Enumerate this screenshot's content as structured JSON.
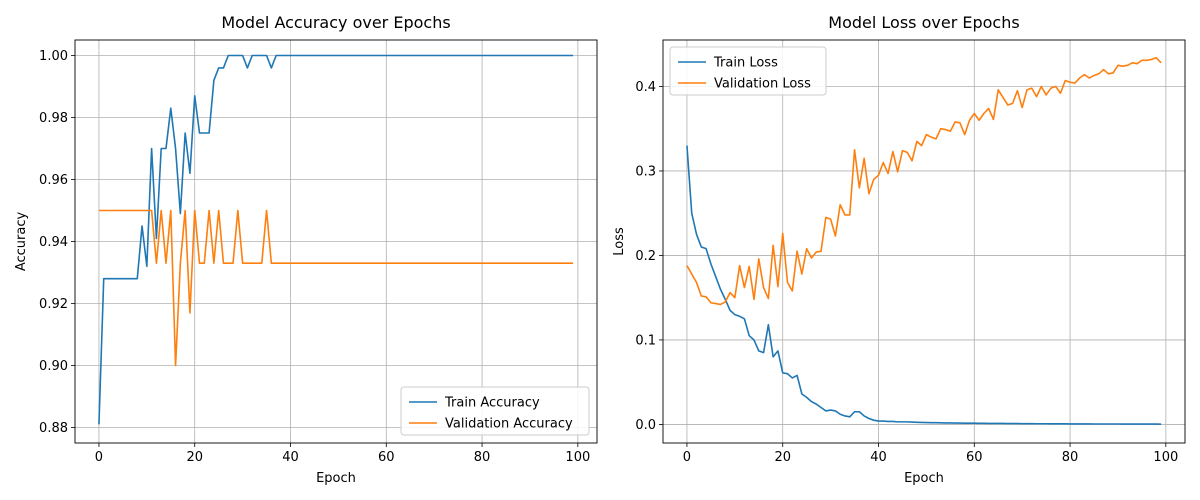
{
  "chart_data": [
    {
      "type": "line",
      "title": "Model Accuracy over Epochs",
      "xlabel": "Epoch",
      "ylabel": "Accuracy",
      "xlim": [
        -5,
        104
      ],
      "ylim": [
        0.875,
        1.005
      ],
      "xticks": [
        0,
        20,
        40,
        60,
        80,
        100
      ],
      "yticks": [
        0.88,
        0.9,
        0.92,
        0.94,
        0.96,
        0.98,
        1.0
      ],
      "ytick_format": 2,
      "grid": true,
      "legend_position": "bottom-right",
      "series": [
        {
          "name": "Train Accuracy",
          "color": "#1f77b4",
          "values": [
            0.881,
            0.928,
            0.928,
            0.928,
            0.928,
            0.928,
            0.928,
            0.928,
            0.928,
            0.945,
            0.932,
            0.97,
            0.941,
            0.97,
            0.97,
            0.983,
            0.97,
            0.949,
            0.975,
            0.962,
            0.987,
            0.975,
            0.975,
            0.975,
            0.992,
            0.996,
            0.996,
            1.0,
            1.0,
            1.0,
            1.0,
            0.996,
            1.0,
            1.0,
            1.0,
            1.0,
            0.996,
            1.0,
            1.0,
            1.0,
            1.0,
            1.0,
            1.0,
            1.0,
            1.0,
            1.0,
            1.0,
            1.0,
            1.0,
            1.0,
            1.0,
            1.0,
            1.0,
            1.0,
            1.0,
            1.0,
            1.0,
            1.0,
            1.0,
            1.0,
            1.0,
            1.0,
            1.0,
            1.0,
            1.0,
            1.0,
            1.0,
            1.0,
            1.0,
            1.0,
            1.0,
            1.0,
            1.0,
            1.0,
            1.0,
            1.0,
            1.0,
            1.0,
            1.0,
            1.0,
            1.0,
            1.0,
            1.0,
            1.0,
            1.0,
            1.0,
            1.0,
            1.0,
            1.0,
            1.0,
            1.0,
            1.0,
            1.0,
            1.0,
            1.0,
            1.0,
            1.0,
            1.0,
            1.0,
            1.0
          ]
        },
        {
          "name": "Validation Accuracy",
          "color": "#ff7f0e",
          "values": [
            0.95,
            0.95,
            0.95,
            0.95,
            0.95,
            0.95,
            0.95,
            0.95,
            0.95,
            0.95,
            0.95,
            0.95,
            0.933,
            0.95,
            0.933,
            0.95,
            0.9,
            0.933,
            0.95,
            0.917,
            0.95,
            0.933,
            0.933,
            0.95,
            0.933,
            0.95,
            0.933,
            0.933,
            0.933,
            0.95,
            0.933,
            0.933,
            0.933,
            0.933,
            0.933,
            0.95,
            0.933,
            0.933,
            0.933,
            0.933,
            0.933,
            0.933,
            0.933,
            0.933,
            0.933,
            0.933,
            0.933,
            0.933,
            0.933,
            0.933,
            0.933,
            0.933,
            0.933,
            0.933,
            0.933,
            0.933,
            0.933,
            0.933,
            0.933,
            0.933,
            0.933,
            0.933,
            0.933,
            0.933,
            0.933,
            0.933,
            0.933,
            0.933,
            0.933,
            0.933,
            0.933,
            0.933,
            0.933,
            0.933,
            0.933,
            0.933,
            0.933,
            0.933,
            0.933,
            0.933,
            0.933,
            0.933,
            0.933,
            0.933,
            0.933,
            0.933,
            0.933,
            0.933,
            0.933,
            0.933,
            0.933,
            0.933,
            0.933,
            0.933,
            0.933,
            0.933,
            0.933,
            0.933,
            0.933,
            0.933
          ]
        }
      ]
    },
    {
      "type": "line",
      "title": "Model Loss over Epochs",
      "xlabel": "Epoch",
      "ylabel": "Loss",
      "xlim": [
        -5,
        104
      ],
      "ylim": [
        -0.022,
        0.455
      ],
      "xticks": [
        0,
        20,
        40,
        60,
        80,
        100
      ],
      "yticks": [
        0.0,
        0.1,
        0.2,
        0.3,
        0.4
      ],
      "ytick_format": 1,
      "grid": true,
      "legend_position": "top-left",
      "series": [
        {
          "name": "Train Loss",
          "color": "#1f77b4",
          "values": [
            0.33,
            0.25,
            0.225,
            0.21,
            0.208,
            0.19,
            0.175,
            0.16,
            0.148,
            0.135,
            0.13,
            0.128,
            0.125,
            0.105,
            0.1,
            0.087,
            0.085,
            0.118,
            0.08,
            0.087,
            0.061,
            0.06,
            0.055,
            0.058,
            0.036,
            0.032,
            0.027,
            0.024,
            0.02,
            0.016,
            0.017,
            0.016,
            0.012,
            0.01,
            0.009,
            0.015,
            0.015,
            0.01,
            0.007,
            0.005,
            0.004,
            0.004,
            0.0035,
            0.0035,
            0.003,
            0.003,
            0.003,
            0.0028,
            0.0025,
            0.0023,
            0.0022,
            0.0021,
            0.002,
            0.0019,
            0.0018,
            0.0017,
            0.0016,
            0.0016,
            0.0015,
            0.0014,
            0.0014,
            0.0013,
            0.0013,
            0.0012,
            0.0012,
            0.0011,
            0.0011,
            0.001,
            0.001,
            0.001,
            0.0009,
            0.0009,
            0.0009,
            0.0008,
            0.0008,
            0.0008,
            0.0007,
            0.0007,
            0.0007,
            0.0007,
            0.0006,
            0.0006,
            0.0006,
            0.0006,
            0.0006,
            0.0005,
            0.0005,
            0.0005,
            0.0005,
            0.0005,
            0.0005,
            0.0004,
            0.0004,
            0.0004,
            0.0004,
            0.0004,
            0.0004,
            0.0004,
            0.0004,
            0.0003
          ]
        },
        {
          "name": "Validation Loss",
          "color": "#ff7f0e",
          "values": [
            0.188,
            0.178,
            0.168,
            0.152,
            0.151,
            0.144,
            0.143,
            0.142,
            0.145,
            0.156,
            0.15,
            0.188,
            0.162,
            0.187,
            0.148,
            0.196,
            0.162,
            0.149,
            0.212,
            0.163,
            0.226,
            0.168,
            0.158,
            0.205,
            0.178,
            0.208,
            0.197,
            0.204,
            0.205,
            0.245,
            0.243,
            0.223,
            0.26,
            0.248,
            0.248,
            0.325,
            0.28,
            0.315,
            0.273,
            0.29,
            0.295,
            0.31,
            0.297,
            0.323,
            0.299,
            0.324,
            0.322,
            0.312,
            0.335,
            0.33,
            0.343,
            0.34,
            0.338,
            0.35,
            0.349,
            0.347,
            0.358,
            0.357,
            0.343,
            0.36,
            0.368,
            0.36,
            0.368,
            0.374,
            0.361,
            0.396,
            0.387,
            0.378,
            0.38,
            0.395,
            0.375,
            0.396,
            0.398,
            0.388,
            0.4,
            0.39,
            0.398,
            0.4,
            0.392,
            0.407,
            0.405,
            0.404,
            0.41,
            0.414,
            0.41,
            0.413,
            0.415,
            0.42,
            0.415,
            0.416,
            0.425,
            0.424,
            0.425,
            0.428,
            0.427,
            0.431,
            0.431,
            0.432,
            0.434,
            0.428
          ]
        }
      ]
    }
  ]
}
